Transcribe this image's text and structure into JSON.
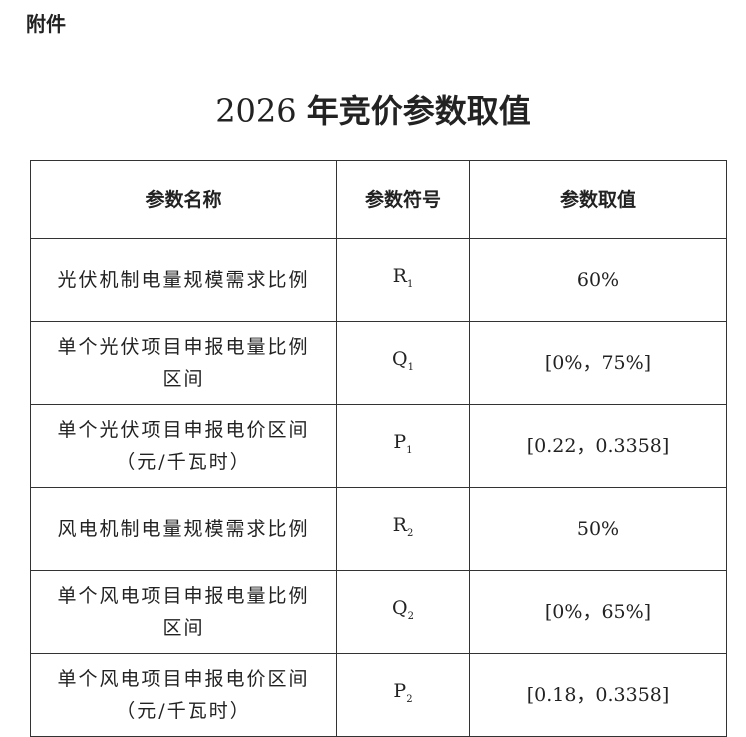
{
  "attachment_label": "附件",
  "title": {
    "year": "2026",
    "text": "年竞价参数取值"
  },
  "table": {
    "headers": [
      "参数名称",
      "参数符号",
      "参数取值"
    ],
    "rows": [
      {
        "name": "光伏机制电量规模需求比例",
        "symbol": "R",
        "sub": "1",
        "value": "60%"
      },
      {
        "name": "单个光伏项目申报电量比例区间",
        "symbol": "Q",
        "sub": "1",
        "value": "[0%，75%]"
      },
      {
        "name": "单个光伏项目申报电价区间（元/千瓦时）",
        "symbol": "P",
        "sub": "1",
        "value": "[0.22，0.3358]"
      },
      {
        "name": "风电机制电量规模需求比例",
        "symbol": "R",
        "sub": "2",
        "value": "50%"
      },
      {
        "name": "单个风电项目申报电量比例区间",
        "symbol": "Q",
        "sub": "2",
        "value": "[0%，65%]"
      },
      {
        "name": "单个风电项目申报电价区间（元/千瓦时）",
        "symbol": "P",
        "sub": "2",
        "value": "[0.18，0.3358]"
      }
    ]
  }
}
